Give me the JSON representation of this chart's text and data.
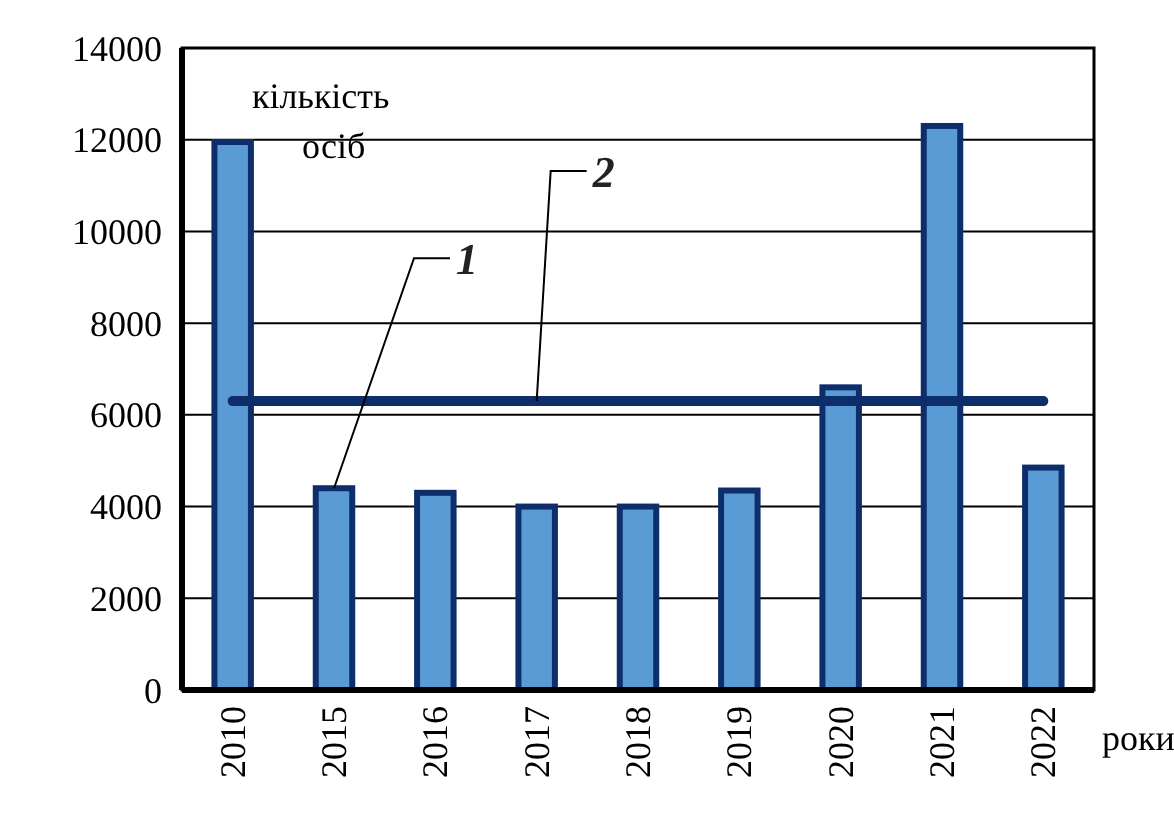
{
  "chart_data": {
    "type": "bar",
    "ylabel": "кількість осіб",
    "xlabel": "роки",
    "categories": [
      "2010",
      "2015",
      "2016",
      "2017",
      "2018",
      "2019",
      "2020",
      "2021",
      "2022"
    ],
    "series": [
      {
        "color": "#5b9bd5",
        "values": [
          11950,
          4400,
          4300,
          4000,
          4000,
          4350,
          6600,
          12300,
          4850
        ]
      },
      {
        "type": "line",
        "color": "#0d2d6b",
        "values": [
          6300,
          6300,
          6300,
          6300,
          6300,
          6300,
          6300,
          6300,
          6300
        ]
      }
    ],
    "ylim": [
      0,
      14000
    ],
    "yticks": [
      0,
      2000,
      4000,
      6000,
      8000,
      10000,
      12000,
      14000
    ],
    "grid": "y",
    "marker": "none",
    "annotations": [
      {
        "text": "1",
        "x": "2015",
        "y": 4400
      },
      {
        "text": "2",
        "x": "2017",
        "y": 6300
      }
    ]
  }
}
